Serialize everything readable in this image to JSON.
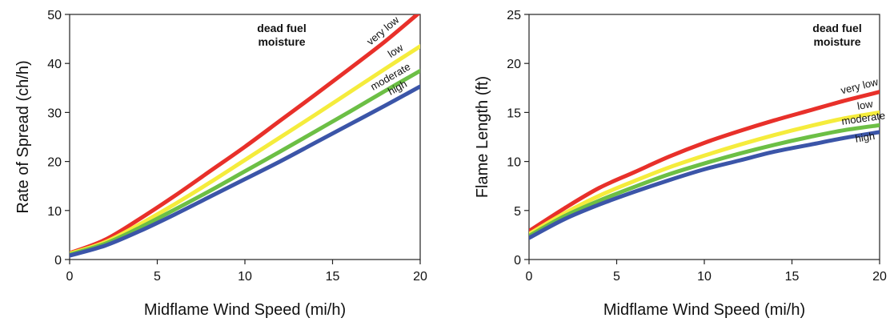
{
  "chart_data": [
    {
      "type": "line",
      "title": "",
      "xlabel": "Midflame Wind Speed (mi/h)",
      "ylabel": "Rate of Spread (ch/h)",
      "xlim": [
        0,
        20
      ],
      "ylim": [
        0,
        50
      ],
      "x_ticks": [
        0,
        5,
        10,
        15,
        20
      ],
      "y_ticks": [
        0,
        10,
        20,
        30,
        40,
        50
      ],
      "grid": false,
      "annotation": [
        "dead fuel",
        "moisture"
      ],
      "x": [
        0,
        2,
        4,
        6,
        8,
        10,
        12,
        14,
        16,
        18,
        20
      ],
      "series": [
        {
          "name": "very low",
          "color": "#e8302a",
          "values": [
            1.3,
            4.0,
            8.3,
            13.0,
            18.0,
            23.0,
            28.3,
            33.6,
            39.0,
            44.5,
            50.5
          ]
        },
        {
          "name": "low",
          "color": "#f5ec3c",
          "values": [
            1.2,
            3.5,
            7.2,
            11.3,
            15.7,
            20.3,
            24.9,
            29.5,
            34.2,
            38.9,
            43.5
          ]
        },
        {
          "name": "moderate",
          "color": "#6cbf45",
          "values": [
            1.0,
            3.2,
            6.5,
            10.2,
            14.0,
            18.0,
            22.0,
            26.1,
            30.2,
            34.4,
            38.5
          ]
        },
        {
          "name": "high",
          "color": "#3b55a8",
          "values": [
            0.8,
            2.8,
            5.8,
            9.2,
            12.8,
            16.4,
            20.0,
            23.8,
            27.6,
            31.4,
            35.3
          ]
        }
      ]
    },
    {
      "type": "line",
      "title": "",
      "xlabel": "Midflame Wind Speed (mi/h)",
      "ylabel": "Flame Length (ft)",
      "xlim": [
        0,
        20
      ],
      "ylim": [
        0,
        25
      ],
      "x_ticks": [
        0,
        5,
        10,
        15,
        20
      ],
      "y_ticks": [
        0,
        5,
        10,
        15,
        20,
        25
      ],
      "grid": false,
      "annotation": [
        "dead fuel",
        "moisture"
      ],
      "x": [
        0,
        2,
        4,
        6,
        8,
        10,
        12,
        14,
        16,
        18,
        20
      ],
      "series": [
        {
          "name": "very low",
          "color": "#e8302a",
          "values": [
            2.9,
            5.2,
            7.3,
            8.9,
            10.5,
            11.9,
            13.1,
            14.2,
            15.2,
            16.2,
            17.1
          ]
        },
        {
          "name": "low",
          "color": "#f5ec3c",
          "values": [
            2.6,
            4.7,
            6.5,
            8.0,
            9.4,
            10.6,
            11.7,
            12.7,
            13.6,
            14.4,
            15.0
          ]
        },
        {
          "name": "moderate",
          "color": "#6cbf45",
          "values": [
            2.4,
            4.4,
            6.0,
            7.4,
            8.7,
            9.8,
            10.8,
            11.7,
            12.5,
            13.2,
            13.7
          ]
        },
        {
          "name": "high",
          "color": "#3b55a8",
          "values": [
            2.2,
            4.1,
            5.6,
            6.9,
            8.1,
            9.2,
            10.1,
            11.0,
            11.7,
            12.4,
            13.0
          ]
        }
      ]
    }
  ]
}
